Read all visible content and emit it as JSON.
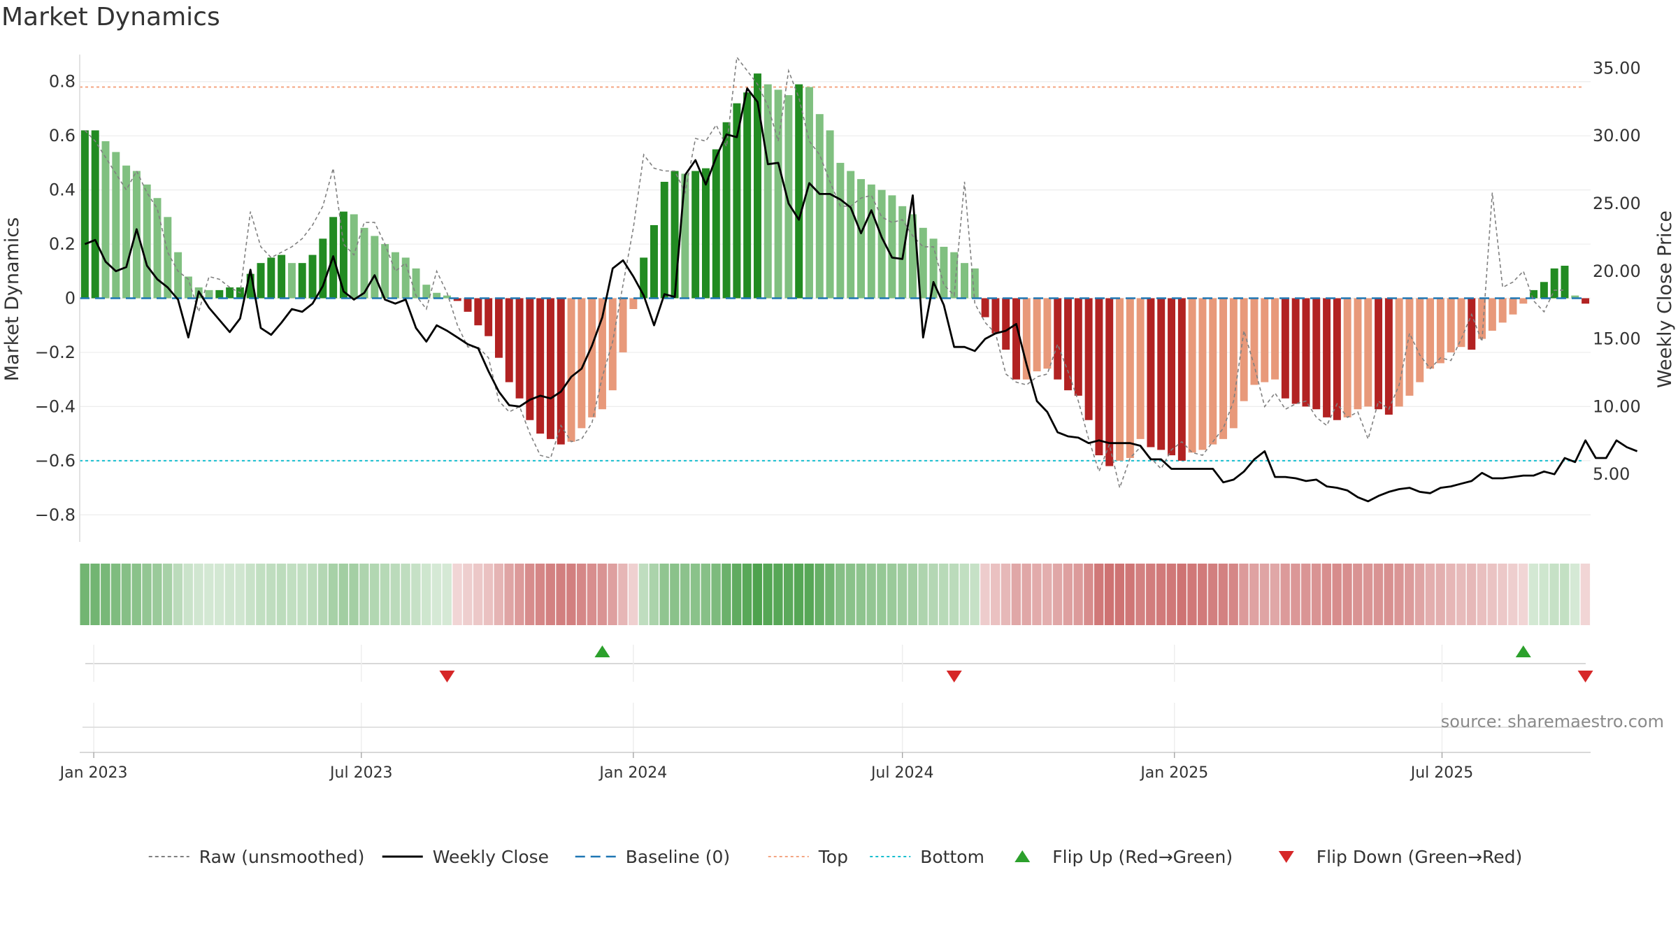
{
  "chart_data": {
    "type": "bar",
    "title": "Market Dynamics",
    "ylabel_left": "Market Dynamics",
    "ylabel_right": "Weekly Close Price",
    "ylim_left": [
      -0.9,
      0.9
    ],
    "ylim_right": [
      0,
      36
    ],
    "yticks_left": [
      {
        "v": 0.8,
        "t": "0.8"
      },
      {
        "v": 0.6,
        "t": "0.6"
      },
      {
        "v": 0.4,
        "t": "0.4"
      },
      {
        "v": 0.2,
        "t": "0.2"
      },
      {
        "v": 0,
        "t": "0"
      },
      {
        "v": -0.2,
        "t": "−0.2"
      },
      {
        "v": -0.4,
        "t": "−0.4"
      },
      {
        "v": -0.6,
        "t": "−0.6"
      },
      {
        "v": -0.8,
        "t": "−0.8"
      }
    ],
    "yticks_right": [
      {
        "v": 35,
        "t": "35.00"
      },
      {
        "v": 30,
        "t": "30.00"
      },
      {
        "v": 25,
        "t": "25.00"
      },
      {
        "v": 20,
        "t": "20.00"
      },
      {
        "v": 15,
        "t": "15.00"
      },
      {
        "v": 10,
        "t": "10.00"
      },
      {
        "v": 5,
        "t": "5.00"
      }
    ],
    "x_start": "2022-12-26",
    "xticks": [
      {
        "date": "2023-01-01",
        "label": "Jan 2023"
      },
      {
        "date": "2023-07-01",
        "label": "Jul 2023"
      },
      {
        "date": "2024-01-01",
        "label": "Jan 2024"
      },
      {
        "date": "2024-07-01",
        "label": "Jul 2024"
      },
      {
        "date": "2025-01-01",
        "label": "Jan 2025"
      },
      {
        "date": "2025-07-01",
        "label": "Jul 2025"
      }
    ],
    "top_level": 0.78,
    "bottom_level": -0.6,
    "grid": true,
    "dynamics": [
      0.62,
      0.62,
      0.58,
      0.54,
      0.49,
      0.47,
      0.42,
      0.37,
      0.3,
      0.17,
      0.08,
      0.04,
      0.03,
      0.03,
      0.04,
      0.04,
      0.09,
      0.13,
      0.15,
      0.16,
      0.13,
      0.13,
      0.16,
      0.22,
      0.3,
      0.32,
      0.31,
      0.26,
      0.23,
      0.2,
      0.17,
      0.15,
      0.11,
      0.05,
      0.02,
      0.01,
      -0.01,
      -0.05,
      -0.1,
      -0.14,
      -0.22,
      -0.31,
      -0.37,
      -0.45,
      -0.5,
      -0.52,
      -0.54,
      -0.53,
      -0.48,
      -0.44,
      -0.41,
      -0.34,
      -0.2,
      -0.04,
      0.15,
      0.27,
      0.43,
      0.47,
      0.46,
      0.47,
      0.48,
      0.55,
      0.65,
      0.72,
      0.76,
      0.83,
      0.79,
      0.77,
      0.75,
      0.79,
      0.78,
      0.68,
      0.62,
      0.5,
      0.47,
      0.44,
      0.42,
      0.4,
      0.38,
      0.34,
      0.31,
      0.26,
      0.22,
      0.19,
      0.17,
      0.13,
      0.11,
      -0.07,
      -0.13,
      -0.19,
      -0.3,
      -0.3,
      -0.27,
      -0.26,
      -0.3,
      -0.34,
      -0.36,
      -0.45,
      -0.58,
      -0.62,
      -0.6,
      -0.59,
      -0.52,
      -0.55,
      -0.56,
      -0.58,
      -0.6,
      -0.57,
      -0.56,
      -0.54,
      -0.52,
      -0.48,
      -0.38,
      -0.32,
      -0.31,
      -0.3,
      -0.37,
      -0.39,
      -0.4,
      -0.41,
      -0.44,
      -0.45,
      -0.44,
      -0.41,
      -0.4,
      -0.41,
      -0.43,
      -0.4,
      -0.36,
      -0.31,
      -0.26,
      -0.24,
      -0.2,
      -0.18,
      -0.19,
      -0.15,
      -0.12,
      -0.09,
      -0.06,
      -0.02,
      0.03,
      0.06,
      0.11,
      0.12,
      0.01,
      -0.02
    ],
    "raw": [
      0.62,
      0.58,
      0.52,
      0.46,
      0.4,
      0.47,
      0.39,
      0.33,
      0.17,
      0.1,
      0.07,
      -0.05,
      0.08,
      0.07,
      0.04,
      0.02,
      0.32,
      0.19,
      0.15,
      0.17,
      0.19,
      0.22,
      0.27,
      0.34,
      0.48,
      0.2,
      0.16,
      0.28,
      0.28,
      0.2,
      0.1,
      0.13,
      0.01,
      -0.04,
      0.1,
      0.02,
      -0.1,
      -0.18,
      -0.18,
      -0.22,
      -0.38,
      -0.42,
      -0.4,
      -0.5,
      -0.58,
      -0.59,
      -0.47,
      -0.53,
      -0.52,
      -0.46,
      -0.29,
      -0.16,
      0.05,
      0.26,
      0.53,
      0.48,
      0.47,
      0.47,
      0.39,
      0.59,
      0.58,
      0.64,
      0.56,
      0.89,
      0.84,
      0.79,
      0.71,
      0.58,
      0.84,
      0.74,
      0.58,
      0.53,
      0.43,
      0.34,
      0.34,
      0.37,
      0.38,
      0.3,
      0.28,
      0.29,
      0.23,
      0.19,
      0.19,
      0.05,
      0.01,
      0.43,
      -0.02,
      -0.09,
      -0.13,
      -0.28,
      -0.31,
      -0.32,
      -0.29,
      -0.28,
      -0.17,
      -0.27,
      -0.38,
      -0.52,
      -0.64,
      -0.54,
      -0.7,
      -0.59,
      -0.55,
      -0.59,
      -0.63,
      -0.56,
      -0.53,
      -0.57,
      -0.58,
      -0.53,
      -0.48,
      -0.38,
      -0.12,
      -0.25,
      -0.4,
      -0.35,
      -0.41,
      -0.39,
      -0.38,
      -0.44,
      -0.47,
      -0.39,
      -0.44,
      -0.42,
      -0.52,
      -0.38,
      -0.41,
      -0.32,
      -0.13,
      -0.21,
      -0.26,
      -0.22,
      -0.23,
      -0.15,
      -0.06,
      -0.16,
      0.39,
      0.04,
      0.06,
      0.1,
      -0.01,
      -0.05,
      0.03,
      0.03
    ],
    "weekly_close": [
      22.0,
      22.3,
      20.7,
      20.0,
      20.3,
      23.1,
      20.4,
      19.4,
      18.8,
      17.9,
      15.1,
      18.5,
      17.3,
      16.4,
      15.5,
      16.5,
      20.1,
      15.8,
      15.3,
      16.2,
      17.2,
      17.0,
      17.6,
      18.9,
      21.1,
      18.5,
      17.9,
      18.4,
      19.7,
      17.9,
      17.6,
      17.9,
      15.8,
      14.8,
      16.0,
      15.6,
      15.1,
      14.6,
      14.3,
      12.6,
      11.1,
      10.1,
      10.0,
      10.5,
      10.8,
      10.6,
      11.1,
      12.2,
      12.8,
      14.5,
      16.6,
      20.2,
      20.8,
      19.6,
      18.2,
      16.0,
      18.3,
      18.1,
      27.1,
      28.2,
      26.4,
      28.4,
      30.1,
      29.9,
      33.5,
      32.5,
      27.9,
      28.0,
      25.0,
      23.8,
      26.5,
      25.7,
      25.7,
      25.3,
      24.7,
      22.8,
      24.5,
      22.5,
      21.0,
      20.9,
      25.6,
      15.1,
      19.2,
      17.5,
      14.4,
      14.4,
      14.1,
      15.0,
      15.4,
      15.6,
      16.1,
      13.1,
      10.4,
      9.6,
      8.1,
      7.8,
      7.7,
      7.3,
      7.5,
      7.3,
      7.3,
      7.3,
      7.1,
      6.1,
      6.1,
      5.4,
      5.4,
      5.4,
      5.4,
      5.4,
      4.4,
      4.6,
      5.2,
      6.1,
      6.7,
      4.8,
      4.8,
      4.7,
      4.5,
      4.6,
      4.1,
      4.0,
      3.8,
      3.3,
      3.0,
      3.4,
      3.7,
      3.9,
      4.0,
      3.7,
      3.6,
      4.0,
      4.1,
      4.3,
      4.5,
      5.1,
      4.7,
      4.7,
      4.8,
      4.9,
      4.9,
      5.2,
      5.0,
      6.2,
      5.9,
      7.5,
      6.2,
      6.2,
      7.5,
      7.0,
      6.7
    ],
    "strength_strip": {
      "positive_color": "#228b22",
      "negative_color": "#b22222"
    },
    "flips_up": [
      "2023-12-11",
      "2025-08-25"
    ],
    "flips_down": [
      "2023-08-28",
      "2024-08-05",
      "2025-10-06"
    ],
    "legend": {
      "position": "bottom-center",
      "items": [
        {
          "label": "Raw (unsmoothed)",
          "symbol": "dash-gray"
        },
        {
          "label": "Weekly Close",
          "symbol": "solid-black"
        },
        {
          "label": "Baseline (0)",
          "symbol": "dash-blue"
        },
        {
          "label": "Top",
          "symbol": "dot-orange"
        },
        {
          "label": "Bottom",
          "symbol": "dot-cyan"
        },
        {
          "label": "Flip Up (Red→Green)",
          "symbol": "triangle-up-green"
        },
        {
          "label": "Flip Down (Green→Red)",
          "symbol": "triangle-down-red"
        }
      ]
    },
    "source": "source: sharemaestro.com",
    "colors": {
      "pos_strong": "#228b22",
      "pos_weak": "#80c080",
      "neg_strong": "#b22222",
      "neg_weak": "#e8997a",
      "raw_line": "#808080",
      "close_line": "#000000",
      "baseline": "#1f77b4",
      "top": "#f4a582",
      "bottom": "#17becf",
      "flip_up": "#2ca02c",
      "flip_down": "#d62728"
    }
  }
}
